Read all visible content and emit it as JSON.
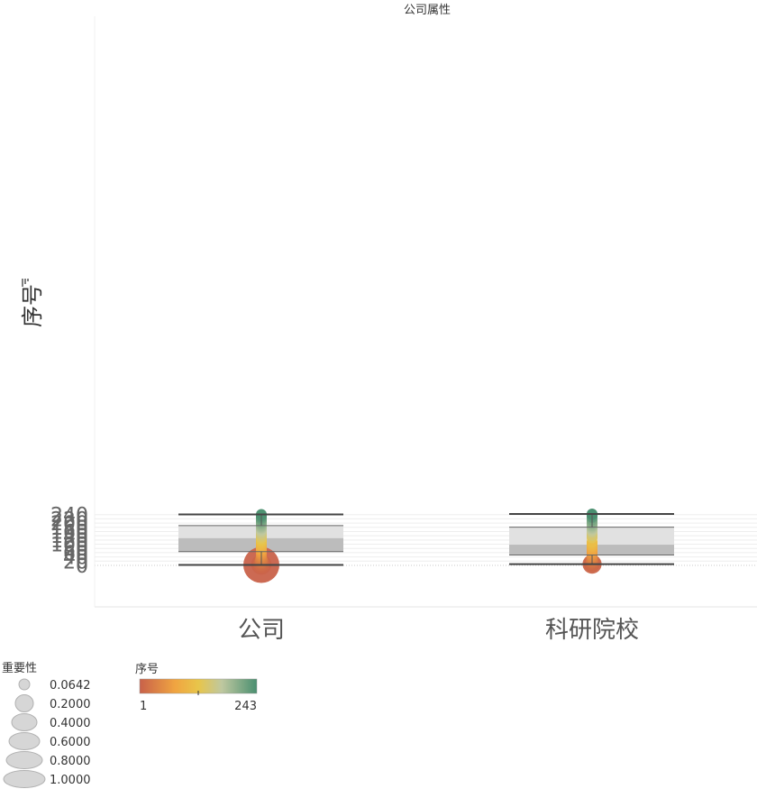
{
  "chart_data": {
    "type": "box-plot with jittered bubbles",
    "title": "公司属性",
    "ylabel": "序号",
    "ylabel_icon": "filter-icon",
    "ylim": [
      -20,
      250
    ],
    "yticks": [
      0,
      20,
      40,
      60,
      80,
      100,
      120,
      140,
      160,
      180,
      200,
      220,
      240
    ],
    "categories": [
      "公司",
      "科研院校"
    ],
    "boxes": [
      {
        "category": "公司",
        "whisker_low": 2,
        "q1": 65,
        "median": 129,
        "q3": 188,
        "whisker_high": 241
      },
      {
        "category": "科研院校",
        "whisker_low": 6,
        "q1": 49,
        "median": 98,
        "q3": 181,
        "whisker_high": 243
      }
    ],
    "points": [
      {
        "category": "公司",
        "y": [
          2,
          4,
          6,
          8,
          10,
          12,
          14,
          16,
          18,
          20,
          22,
          24,
          26,
          28,
          30,
          32,
          34,
          36,
          38,
          40,
          42,
          44,
          46,
          48,
          50,
          52,
          54,
          56,
          58,
          60,
          62,
          64,
          67,
          70,
          73,
          76,
          79,
          82,
          85,
          88,
          91,
          94,
          97,
          100,
          103,
          106,
          109,
          112,
          115,
          118,
          121,
          124,
          127,
          130,
          133,
          136,
          139,
          142,
          145,
          148,
          151,
          154,
          157,
          160,
          163,
          166,
          169,
          172,
          175,
          178,
          181,
          184,
          187,
          190,
          193,
          196,
          199,
          202,
          205,
          208,
          211,
          214,
          217,
          220,
          223,
          226,
          229,
          232,
          235,
          238,
          241
        ]
      },
      {
        "category": "科研院校",
        "y": [
          6,
          8,
          10,
          12,
          14,
          16,
          18,
          20,
          22,
          24,
          27,
          30,
          33,
          36,
          39,
          42,
          45,
          48,
          52,
          57,
          62,
          67,
          70,
          72,
          75,
          78,
          81,
          84,
          89,
          93,
          98,
          102,
          107,
          110,
          130,
          142,
          144,
          157,
          165,
          172,
          175,
          181,
          186,
          190,
          197,
          201,
          206,
          215,
          226,
          230,
          239,
          241,
          243
        ]
      }
    ],
    "point_sizes": {
      "公司": [
        1.0,
        0.5,
        0.42,
        0.36,
        0.32,
        0.28,
        0.25,
        0.23,
        0.21,
        0.2,
        0.19,
        0.18,
        0.17,
        0.16,
        0.15,
        0.14,
        0.13,
        0.12,
        0.11,
        0.1
      ],
      "科研院校": [
        0.45,
        0.33,
        0.28,
        0.25,
        0.22,
        0.2,
        0.18,
        0.17,
        0.16,
        0.15,
        0.14,
        0.13,
        0.12,
        0.11,
        0.1
      ]
    },
    "colors": {
      "box_upper": "#e1e1e1",
      "box_lower": "#bcbcbc",
      "whisker": "#444444",
      "grid": "#eeeeee",
      "color_low": "#c8614a",
      "color_mid_low": "#f0a441",
      "color_mid": "#e8c54a",
      "color_mid_high": "#bfc8a0",
      "color_high": "#4a8f70"
    },
    "legend_size": {
      "title": "重要性",
      "labels": [
        "0.0642",
        "0.2000",
        "0.4000",
        "0.6000",
        "0.8000",
        "1.0000"
      ]
    },
    "legend_color": {
      "title": "序号",
      "min_label": "1",
      "max_label": "243"
    }
  }
}
